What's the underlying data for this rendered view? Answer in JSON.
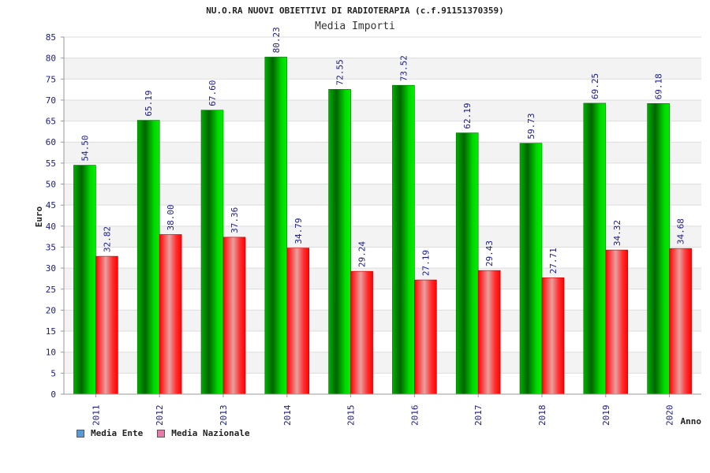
{
  "chart_data": {
    "type": "bar",
    "title": "NU.O.RA NUOVI OBIETTIVI DI RADIOTERAPIA (c.f.91151370359)",
    "subtitle": "Media Importi",
    "xlabel": "Anno",
    "ylabel": "Euro",
    "ylim": [
      0,
      85
    ],
    "ytick_step": 5,
    "grid": true,
    "legend_position": "bottom-left",
    "categories": [
      "2011",
      "2012",
      "2013",
      "2014",
      "2015",
      "2016",
      "2017",
      "2018",
      "2019",
      "2020"
    ],
    "series": [
      {
        "name": "Media Ente",
        "values": [
          54.5,
          65.19,
          67.6,
          80.23,
          72.55,
          73.52,
          62.19,
          59.73,
          69.25,
          69.18
        ],
        "labels": [
          "54.50",
          "65.19",
          "67.60",
          "80.23",
          "72.55",
          "73.52",
          "62.19",
          "59.73",
          "69.25",
          "69.18"
        ],
        "color": "#00c000",
        "legend_color": "#5b9bd5"
      },
      {
        "name": "Media Nazionale",
        "values": [
          32.82,
          38.0,
          37.36,
          34.79,
          29.24,
          27.19,
          29.43,
          27.71,
          34.32,
          34.68
        ],
        "labels": [
          "32.82",
          "38.00",
          "37.36",
          "34.79",
          "29.24",
          "27.19",
          "29.43",
          "27.71",
          "34.32",
          "34.68"
        ],
        "color": "#ff0000",
        "legend_color": "#e87aa8"
      }
    ]
  }
}
